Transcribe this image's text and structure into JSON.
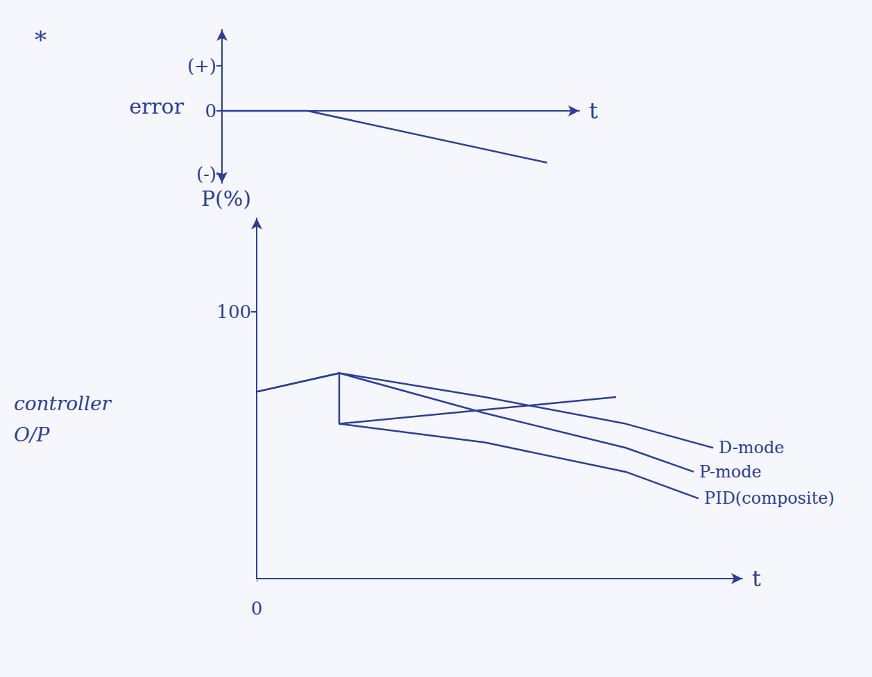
{
  "chart_data": [
    {
      "type": "line",
      "annotation": "*",
      "ylabel": "error",
      "xlabel": "t",
      "xlim": [
        0,
        10
      ],
      "ylim": [
        -1.6,
        1.8
      ],
      "yticks": [
        {
          "value": 1,
          "label": "(+)"
        },
        0,
        {
          "value": -1.4,
          "label": "(-)"
        }
      ],
      "tick_labels": "y",
      "grid": false,
      "series": [
        {
          "color": "#2b3d9e",
          "x": [
            0,
            2.4,
            9.1
          ],
          "values": [
            0,
            0,
            -1.15
          ]
        }
      ]
    },
    {
      "type": "line",
      "annotation": "controller O/P",
      "ylabel": "P(%)",
      "xlabel": "t",
      "xlim": [
        0,
        10
      ],
      "xticks": [
        0
      ],
      "ylim": [
        0,
        135
      ],
      "yticks": [
        100
      ],
      "grid": false,
      "series": [
        {
          "name": "D-mode",
          "color": "#2b3d9e",
          "x": [
            0,
            1.7,
            4.7,
            7.6,
            9.4
          ],
          "values": [
            70,
            77,
            68,
            58,
            49
          ]
        },
        {
          "name": "P-mode",
          "color": "#2b3d9e",
          "x": [
            0,
            1.7,
            4.7,
            7.6,
            9.0
          ],
          "values": [
            70,
            77,
            62,
            49,
            40
          ]
        },
        {
          "color": "#2b3d9e",
          "x": [
            1.7,
            1.7,
            7.4
          ],
          "values": [
            77,
            58,
            68
          ]
        },
        {
          "name": "PID(composite)",
          "color": "#2b3d9e",
          "x": [
            1.7,
            4.7,
            7.6,
            9.1
          ],
          "values": [
            58,
            51,
            40,
            30
          ]
        }
      ]
    }
  ]
}
